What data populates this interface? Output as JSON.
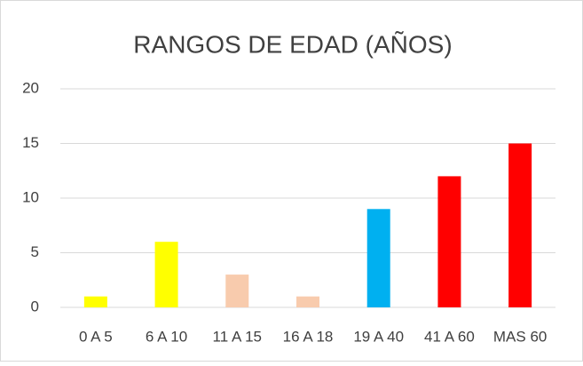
{
  "chart_data": {
    "type": "bar",
    "title": "RANGOS DE EDAD (AÑOS)",
    "categories": [
      "0 A 5",
      "6 A 10",
      "11 A 15",
      "16 A 18",
      "19 A 40",
      "41 A 60",
      "MAS 60"
    ],
    "values": [
      1,
      6,
      3,
      1,
      9,
      12,
      15
    ],
    "colors": [
      "#ffff00",
      "#ffff00",
      "#f8cbad",
      "#f8cbad",
      "#00b0f0",
      "#ff0000",
      "#ff0000"
    ],
    "ylim": [
      0,
      20
    ],
    "yticks": [
      0,
      5,
      10,
      15,
      20
    ],
    "grid": true
  }
}
